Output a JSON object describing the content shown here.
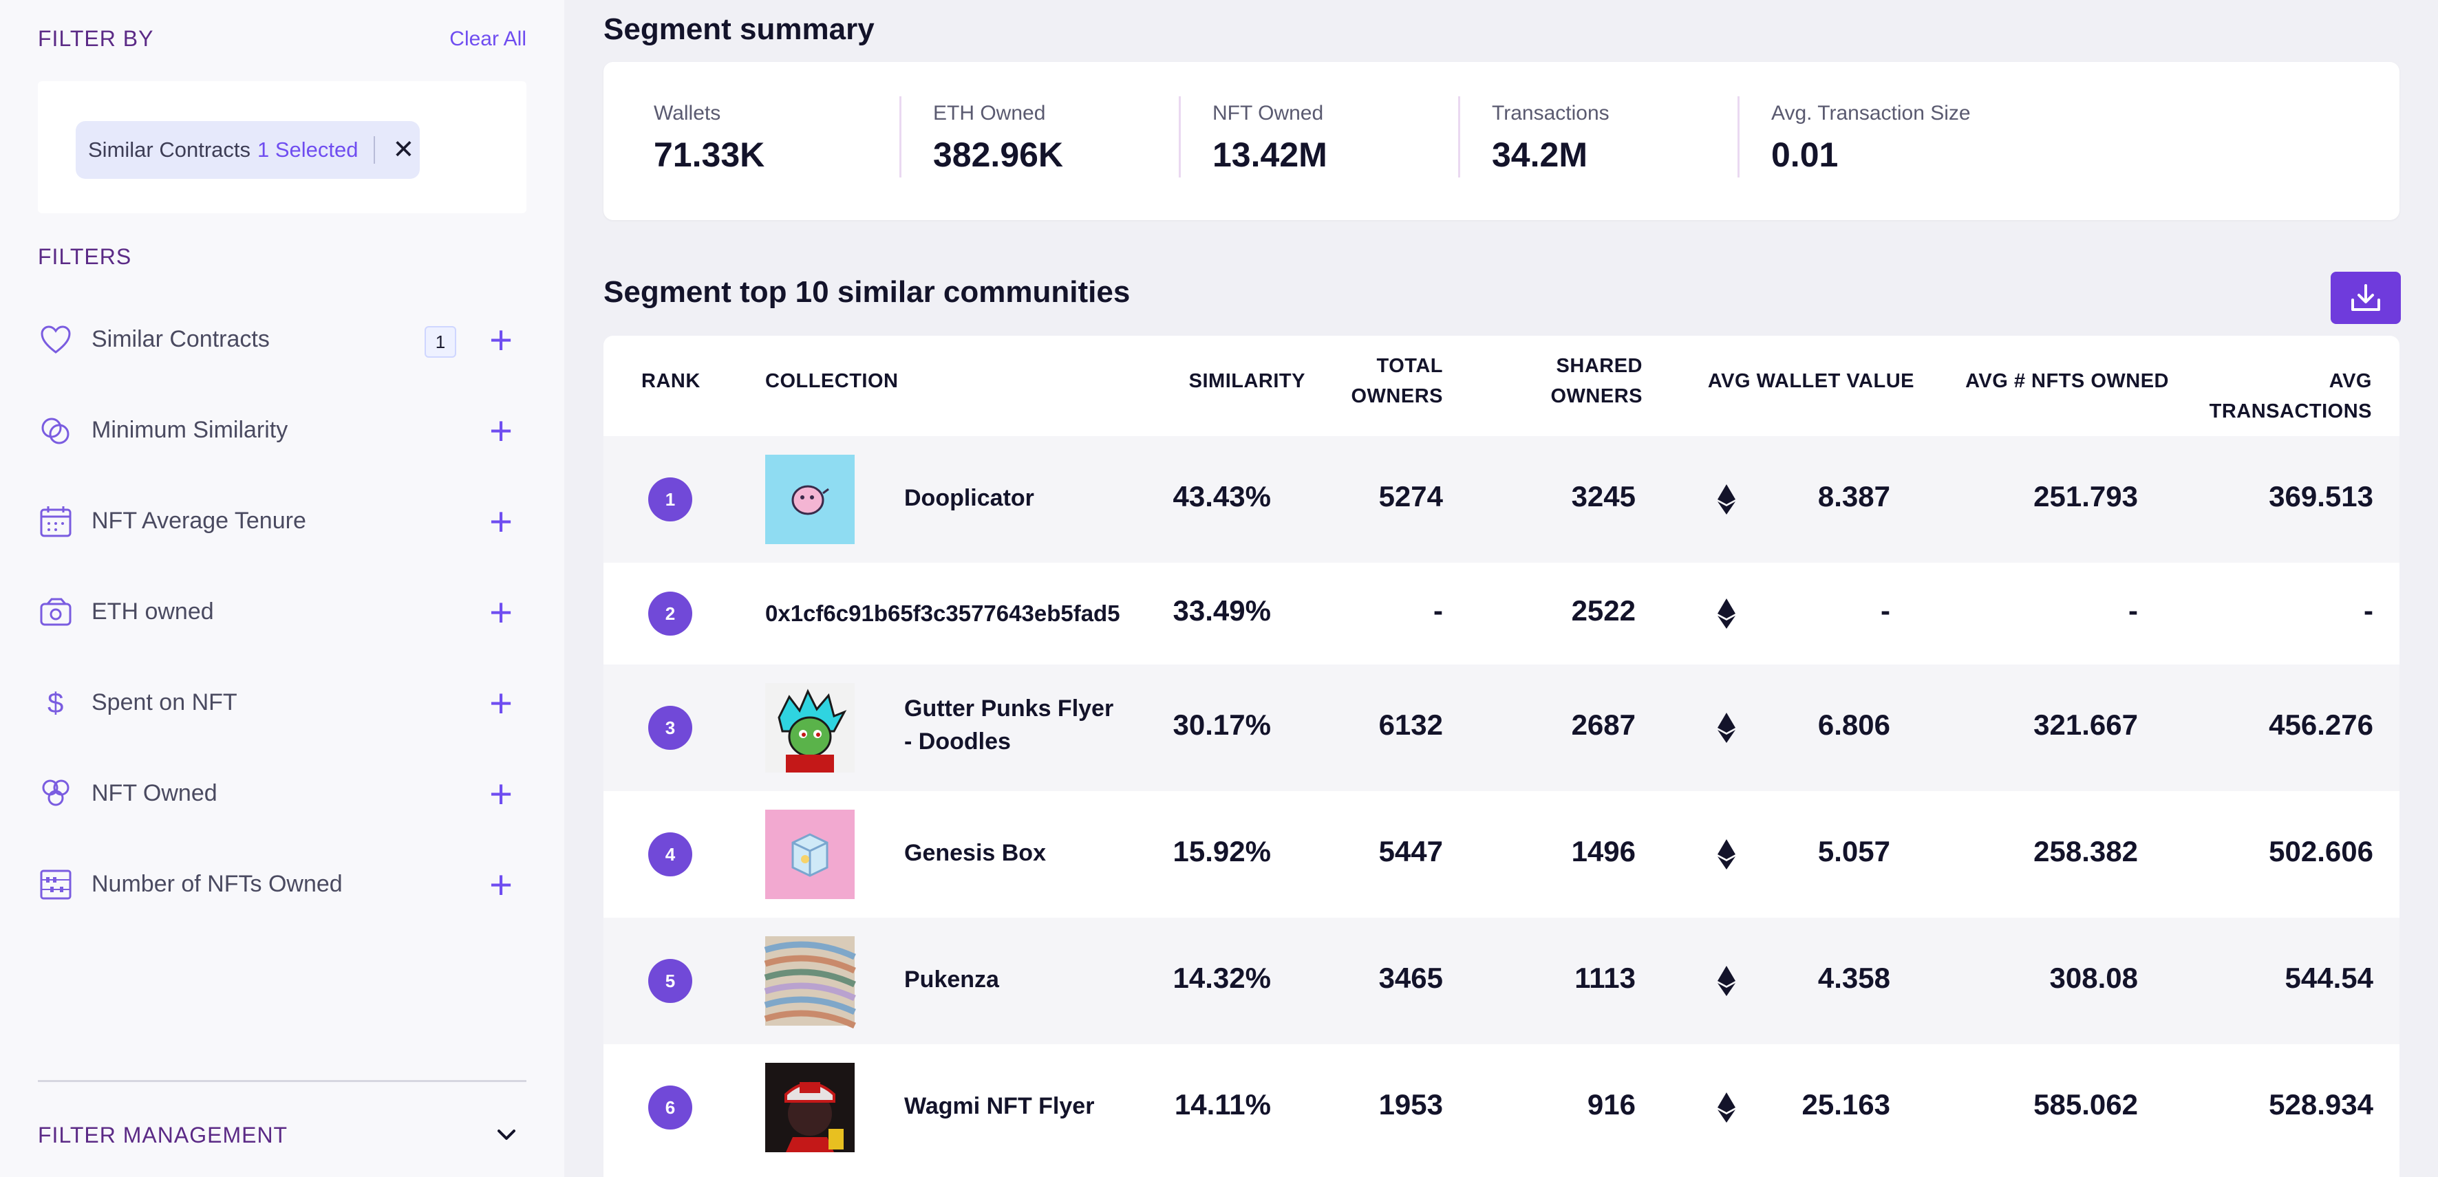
{
  "sidebar": {
    "filter_by_title": "FILTER BY",
    "clear_all": "Clear All",
    "selected_chip": {
      "label": "Similar Contracts",
      "count": "1 Selected",
      "close": "✕"
    },
    "filters_title": "FILTERS",
    "filters": [
      {
        "label": "Similar Contracts",
        "icon": "heart-icon",
        "badge": "1",
        "plus": "+"
      },
      {
        "label": "Minimum Similarity",
        "icon": "overlap-circles-icon",
        "plus": "+"
      },
      {
        "label": "NFT Average Tenure",
        "icon": "calendar-icon",
        "plus": "+"
      },
      {
        "label": "ETH owned",
        "icon": "wallet-icon",
        "plus": "+"
      },
      {
        "label": "Spent on NFT",
        "icon": "dollar-icon",
        "plus": "+"
      },
      {
        "label": "NFT Owned",
        "icon": "clover-icon",
        "plus": "+"
      },
      {
        "label": "Number of NFTs Owned",
        "icon": "abacus-icon",
        "plus": "+"
      }
    ],
    "filter_management_title": "FILTER MANAGEMENT"
  },
  "summary": {
    "title": "Segment summary",
    "stats": [
      {
        "label": "Wallets",
        "value": "71.33K"
      },
      {
        "label": "ETH Owned",
        "value": "382.96K"
      },
      {
        "label": "NFT Owned",
        "value": "13.42M"
      },
      {
        "label": "Transactions",
        "value": "34.2M"
      },
      {
        "label": "Avg. Transaction Size",
        "value": "0.01"
      }
    ]
  },
  "communities": {
    "title": "Segment top 10 similar communities",
    "headers": {
      "rank": "RANK",
      "collection": "COLLECTION",
      "similarity": "SIMILARITY",
      "total_owners_1": "TOTAL",
      "total_owners_2": "OWNERS",
      "shared_owners_1": "SHARED",
      "shared_owners_2": "OWNERS",
      "avg_wallet_value": "AVG WALLET VALUE",
      "avg_nfts_owned": "AVG # NFTS OWNED",
      "avg_transactions": "AVG TRANSACTIONS"
    },
    "rows": [
      {
        "rank": "1",
        "name": "Dooplicator",
        "similarity": "43.43%",
        "total_owners": "5274",
        "shared_owners": "3245",
        "avg_wallet_value": "8.387",
        "avg_nfts_owned": "251.793",
        "avg_transactions": "369.513",
        "thumb": "dooplicator-thumb"
      },
      {
        "rank": "2",
        "name": "0x1cf6c91b65f3c3577643eb5fad5",
        "similarity": "33.49%",
        "total_owners": "-",
        "shared_owners": "2522",
        "avg_wallet_value": "-",
        "avg_nfts_owned": "-",
        "avg_transactions": "-",
        "thumb": ""
      },
      {
        "rank": "3",
        "name_1": "Gutter Punks Flyer",
        "name_2": "- Doodles",
        "similarity": "30.17%",
        "total_owners": "6132",
        "shared_owners": "2687",
        "avg_wallet_value": "6.806",
        "avg_nfts_owned": "321.667",
        "avg_transactions": "456.276",
        "thumb": "gutter-punks-thumb"
      },
      {
        "rank": "4",
        "name": "Genesis Box",
        "similarity": "15.92%",
        "total_owners": "5447",
        "shared_owners": "1496",
        "avg_wallet_value": "5.057",
        "avg_nfts_owned": "258.382",
        "avg_transactions": "502.606",
        "thumb": "genesis-box-thumb"
      },
      {
        "rank": "5",
        "name": "Pukenza",
        "similarity": "14.32%",
        "total_owners": "3465",
        "shared_owners": "1113",
        "avg_wallet_value": "4.358",
        "avg_nfts_owned": "308.08",
        "avg_transactions": "544.54",
        "thumb": "pukenza-thumb"
      },
      {
        "rank": "6",
        "name": "Wagmi NFT Flyer",
        "similarity": "14.11%",
        "total_owners": "1953",
        "shared_owners": "916",
        "avg_wallet_value": "25.163",
        "avg_nfts_owned": "585.062",
        "avg_transactions": "528.934",
        "thumb": "wagmi-thumb"
      }
    ]
  },
  "colors": {
    "accent": "#6f4df0",
    "brand_purple": "#5b2a86",
    "rank_badge": "#7149d8"
  }
}
